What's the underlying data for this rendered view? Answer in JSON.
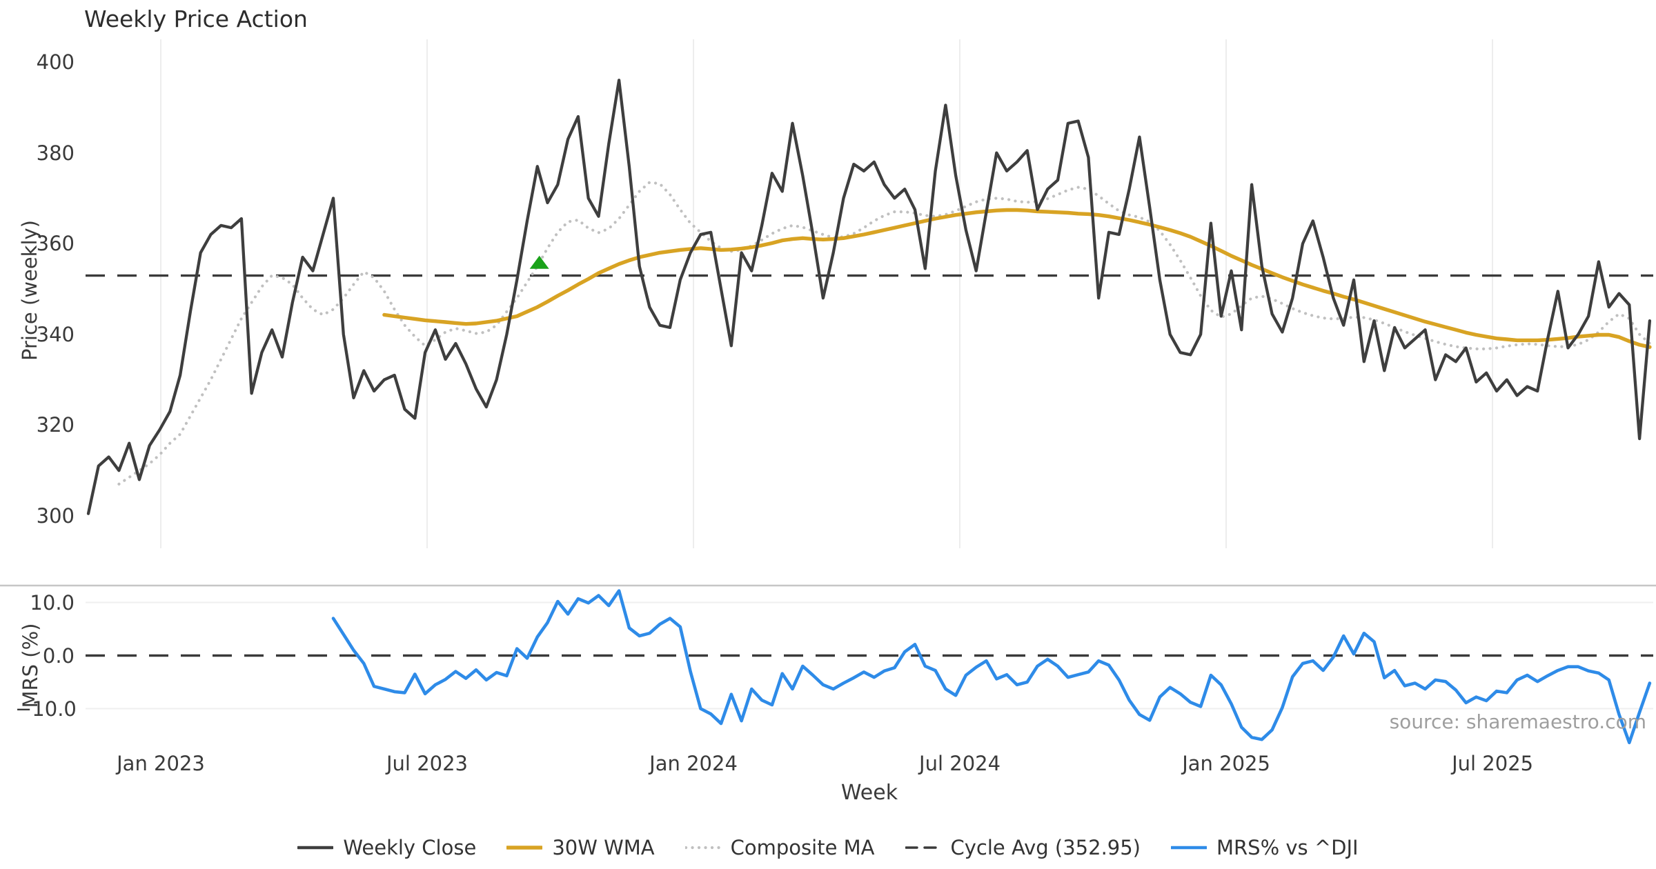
{
  "title": "Weekly Price Action",
  "source_note": "source: sharemaestro.com",
  "colors": {
    "close": "#3e3e3e",
    "wma30": "#d8a323",
    "composite": "#c0c0c0",
    "cycle_avg": "#3a3a3a",
    "mrs": "#2e8be8",
    "signal_marker": "#1aa21a",
    "grid_vertical": "#ededed",
    "grid_horizontal": "#efefef",
    "panel_spine": "#c6c6c6",
    "tick_text": "#3a3a3a"
  },
  "legend": {
    "items": [
      {
        "label": "Weekly Close",
        "series": "close",
        "style": "solid"
      },
      {
        "label": "30W WMA",
        "series": "wma30",
        "style": "solid"
      },
      {
        "label": "Composite MA",
        "series": "composite",
        "style": "dotted"
      },
      {
        "label": "Cycle Avg (352.95)",
        "series": "cycle_avg",
        "style": "dashed"
      },
      {
        "label": "MRS% vs ^DJI",
        "series": "mrs",
        "style": "solid"
      }
    ]
  },
  "chart_data": {
    "type": "line",
    "title": "Weekly Price Action",
    "xlabel": "Week",
    "x_unit": "weekly index (w0 ≈ mid-Nov 2022)",
    "n_points": 154,
    "x_tick_weeks": [
      7.1,
      33.2,
      59.3,
      85.4,
      111.5,
      137.6
    ],
    "x_tick_labels": [
      "Jan 2023",
      "Jul 2023",
      "Jan 2024",
      "Jul 2024",
      "Jan 2025",
      "Jul 2025"
    ],
    "grid": {
      "top_panel": "vertical-only",
      "bottom_panel": "horizontal-only"
    },
    "panels": [
      {
        "name": "price",
        "ylabel": "Price (weekly)",
        "ylim": [
          292.8,
          405.0
        ],
        "yticks": [
          400,
          380,
          360,
          340,
          320,
          300
        ],
        "ytick_labels": [
          "400",
          "380",
          "360",
          "340",
          "320",
          "300"
        ],
        "cycle_avg": 352.95,
        "signal_marker": {
          "symbol": "triangle-up",
          "week": 44.2,
          "value": 355.8
        },
        "series": [
          {
            "name": "Weekly Close",
            "key": "close",
            "style": "solid",
            "values": [
              300.5,
              311,
              313,
              310,
              316,
              308,
              315.5,
              319,
              323,
              331,
              345,
              358,
              362,
              364,
              363.5,
              365.5,
              327,
              336,
              341,
              335,
              347,
              357,
              354,
              362,
              370,
              340,
              326,
              332,
              327.5,
              330,
              331,
              323.5,
              321.5,
              336,
              341,
              334.5,
              338,
              333.5,
              328,
              324,
              330,
              340,
              352,
              365,
              377,
              369,
              373,
              383,
              388,
              370,
              366,
              382,
              396,
              377,
              355,
              346,
              342,
              341.5,
              352,
              358,
              362,
              362.5,
              350,
              337.5,
              358,
              354,
              364,
              375.5,
              371.5,
              386.5,
              375,
              362,
              348,
              358,
              370,
              377.5,
              376,
              378,
              373,
              370,
              372,
              367.5,
              354.5,
              376,
              390.5,
              375,
              363,
              354,
              367,
              380,
              376,
              378,
              380.5,
              367.5,
              372,
              374,
              386.5,
              387,
              379,
              348,
              362.5,
              362,
              372,
              383.5,
              368,
              352,
              340,
              336,
              335.5,
              340,
              364.5,
              344,
              354,
              341,
              373,
              355,
              344.5,
              340.5,
              348,
              360,
              365,
              357,
              348,
              342,
              352,
              334,
              343,
              332,
              341.5,
              337,
              339,
              341,
              330,
              335.5,
              334,
              337,
              329.5,
              331.5,
              327.5,
              330,
              326.5,
              328.5,
              327.5,
              339,
              349.5,
              337,
              340,
              344,
              356,
              346,
              349,
              346.5,
              317,
              343
            ]
          },
          {
            "name": "30W WMA",
            "key": "wma30",
            "style": "solid",
            "values": [
              null,
              null,
              null,
              null,
              null,
              null,
              null,
              null,
              null,
              null,
              null,
              null,
              null,
              null,
              null,
              null,
              null,
              null,
              null,
              null,
              null,
              null,
              null,
              null,
              null,
              null,
              null,
              null,
              null,
              344.3,
              344,
              343.7,
              343.4,
              343.1,
              342.9,
              342.7,
              342.5,
              342.3,
              342.4,
              342.7,
              343,
              343.5,
              344,
              345,
              346,
              347.2,
              348.5,
              349.7,
              351,
              352.2,
              353.5,
              354.5,
              355.5,
              356.3,
              357,
              357.5,
              358,
              358.3,
              358.6,
              358.8,
              359,
              358.8,
              358.6,
              358.7,
              358.9,
              359.2,
              359.6,
              360.1,
              360.7,
              361,
              361.2,
              361,
              360.9,
              361,
              361.2,
              361.6,
              362,
              362.5,
              363,
              363.5,
              364,
              364.5,
              365,
              365.5,
              365.9,
              366.3,
              366.6,
              366.9,
              367.1,
              367.3,
              367.4,
              367.4,
              367.3,
              367.1,
              367,
              366.9,
              366.8,
              366.6,
              366.5,
              366.3,
              366,
              365.6,
              365.2,
              364.7,
              364.2,
              363.6,
              363,
              362.3,
              361.5,
              360.5,
              359.5,
              358.4,
              357.3,
              356.3,
              355.3,
              354.4,
              353.5,
              352.6,
              351.8,
              351,
              350.3,
              349.6,
              349,
              348.3,
              347.7,
              347,
              346.3,
              345.6,
              344.9,
              344.2,
              343.5,
              342.8,
              342.2,
              341.6,
              341,
              340.4,
              339.9,
              339.5,
              339.1,
              338.9,
              338.7,
              338.7,
              338.7,
              338.8,
              339,
              339.2,
              339.5,
              339.7,
              339.9,
              339.9,
              339.4,
              338.5,
              337.7,
              337.2
            ]
          },
          {
            "name": "Composite MA",
            "key": "composite",
            "style": "dotted",
            "values": [
              null,
              null,
              null,
              307,
              308.5,
              310,
              311.5,
              313.5,
              316,
              318,
              322,
              326,
              330,
              334.5,
              339,
              343.5,
              347,
              350.5,
              353,
              352.5,
              351,
              348,
              345.5,
              344.3,
              345.5,
              348,
              351,
              353.8,
              352.5,
              349.5,
              345.5,
              342,
              339.5,
              337.5,
              338.8,
              340.5,
              341.3,
              340.8,
              340.2,
              340.5,
              342,
              345,
              348,
              351.5,
              355,
              359,
              362.5,
              364.8,
              365.2,
              363.4,
              362.4,
              363.3,
              365.5,
              368.5,
              371.5,
              373.5,
              373.2,
              370.8,
              367.5,
              364.5,
              362.5,
              360.5,
              359,
              358.3,
              358.6,
              359.5,
              360.8,
              362.2,
              363.3,
              364,
              363.6,
              362.8,
              362,
              361.3,
              361.5,
              362.2,
              363.5,
              365,
              366.2,
              367,
              367,
              366.7,
              366.2,
              366,
              366.4,
              367.2,
              368.2,
              369.2,
              369.8,
              370,
              369.8,
              369.3,
              369.1,
              369.3,
              369.9,
              370.8,
              371.8,
              372.4,
              372,
              370.5,
              368.8,
              367.2,
              366.3,
              365.8,
              364.8,
              362.8,
              359.8,
              356.3,
              352.5,
              348.5,
              345.3,
              343.8,
              344.5,
              346.3,
              348,
              348.4,
              347.8,
              346.8,
              345.7,
              344.8,
              344.1,
              343.6,
              343.4,
              343.5,
              343.8,
              343.7,
              343.2,
              342.4,
              341.5,
              340.6,
              339.8,
              339.1,
              338.4,
              337.8,
              337.3,
              337,
              336.8,
              336.8,
              337,
              337.4,
              337.7,
              337.9,
              337.8,
              337.5,
              337.3,
              337.3,
              337.8,
              338.8,
              340.5,
              342.8,
              344.5,
              343.5,
              340,
              338
            ]
          }
        ]
      },
      {
        "name": "mrs",
        "ylabel": "MRS (%)",
        "ylim": [
          -17.0,
          13.1
        ],
        "yticks": [
          10.0,
          0.0,
          -10.0
        ],
        "ytick_labels": [
          "10.0",
          "0.0",
          "−10.0"
        ],
        "zero_line": 0.0,
        "series": [
          {
            "name": "MRS% vs ^DJI",
            "key": "mrs",
            "style": "solid",
            "values": [
              null,
              null,
              null,
              null,
              null,
              null,
              null,
              null,
              null,
              null,
              null,
              null,
              null,
              null,
              null,
              null,
              null,
              null,
              null,
              null,
              null,
              null,
              null,
              null,
              7,
              4,
              1,
              -1.5,
              -5.8,
              -6.3,
              -6.8,
              -7,
              -3.5,
              -7.2,
              -5.5,
              -4.5,
              -3,
              -4.3,
              -2.7,
              -4.6,
              -3.2,
              -3.8,
              1.3,
              -0.5,
              3.5,
              6.2,
              10.2,
              7.8,
              10.7,
              9.9,
              11.3,
              9.4,
              12.2,
              5.2,
              3.7,
              4.2,
              5.9,
              7,
              5.4,
              -3,
              -10,
              -11,
              -12.8,
              -7.3,
              -12.3,
              -6.3,
              -8.4,
              -9.3,
              -3.4,
              -6.3,
              -2,
              -3.7,
              -5.5,
              -6.3,
              -5.2,
              -4.2,
              -3.1,
              -4.1,
              -2.9,
              -2.3,
              0.7,
              2.1,
              -2,
              -2.8,
              -6.3,
              -7.5,
              -3.7,
              -2.2,
              -1,
              -4.4,
              -3.6,
              -5.5,
              -5,
              -2,
              -0.7,
              -2,
              -4.1,
              -3.6,
              -3.1,
              -1,
              -1.8,
              -4.6,
              -8.4,
              -11.1,
              -12.2,
              -7.8,
              -6,
              -7.2,
              -8.8,
              -9.6,
              -3.7,
              -5.5,
              -9.1,
              -13.5,
              -15.4,
              -15.8,
              -14,
              -9.8,
              -4,
              -1.5,
              -1,
              -2.8,
              -0.3,
              3.7,
              0.3,
              4.2,
              2.6,
              -4.2,
              -2.8,
              -5.7,
              -5.2,
              -6.3,
              -4.6,
              -4.9,
              -6.5,
              -8.9,
              -7.8,
              -8.5,
              -6.7,
              -7,
              -4.6,
              -3.7,
              -4.9,
              -3.8,
              -2.8,
              -2.1,
              -2.1,
              -2.9,
              -3.3,
              -4.6,
              -11.1,
              -16.4,
              -10.7,
              -5.2
            ]
          }
        ]
      }
    ]
  }
}
